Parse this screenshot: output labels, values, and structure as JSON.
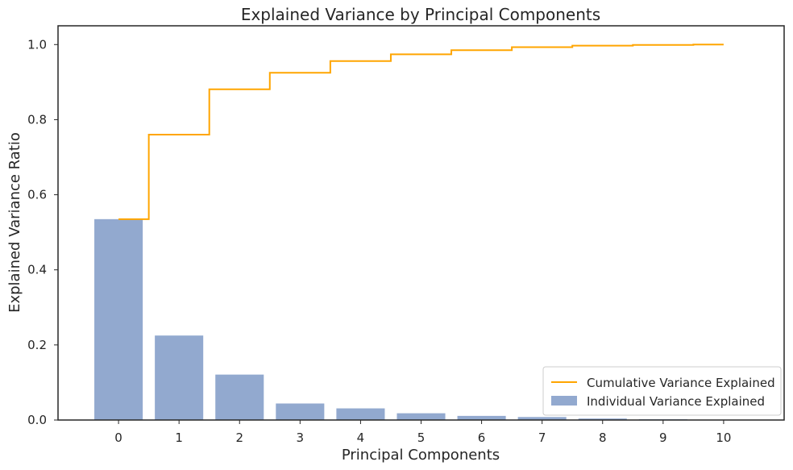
{
  "chart_data": {
    "type": "bar",
    "title": "Explained Variance by Principal Components",
    "xlabel": "Principal Components",
    "ylabel": "Explained Variance Ratio",
    "categories": [
      "0",
      "1",
      "2",
      "3",
      "4",
      "5",
      "6",
      "7",
      "8",
      "9",
      "10"
    ],
    "xlim": [
      -1,
      11
    ],
    "ylim": [
      0,
      1.05
    ],
    "yticks": [
      0.0,
      0.2,
      0.4,
      0.6,
      0.8,
      1.0
    ],
    "ytick_labels": [
      "0.0",
      "0.2",
      "0.4",
      "0.6",
      "0.8",
      "1.0"
    ],
    "grid": false,
    "legend_position": "bottom-right",
    "series": [
      {
        "name": "Individual Variance Explained",
        "type": "bar",
        "color": "#92a9cf",
        "values": [
          0.535,
          0.225,
          0.121,
          0.044,
          0.031,
          0.018,
          0.011,
          0.008,
          0.004,
          0.002,
          0.001
        ]
      },
      {
        "name": "Cumulative Variance Explained",
        "type": "step",
        "color": "#ffa500",
        "values": [
          0.535,
          0.76,
          0.881,
          0.925,
          0.956,
          0.974,
          0.985,
          0.993,
          0.997,
          0.999,
          1.0
        ]
      }
    ]
  }
}
